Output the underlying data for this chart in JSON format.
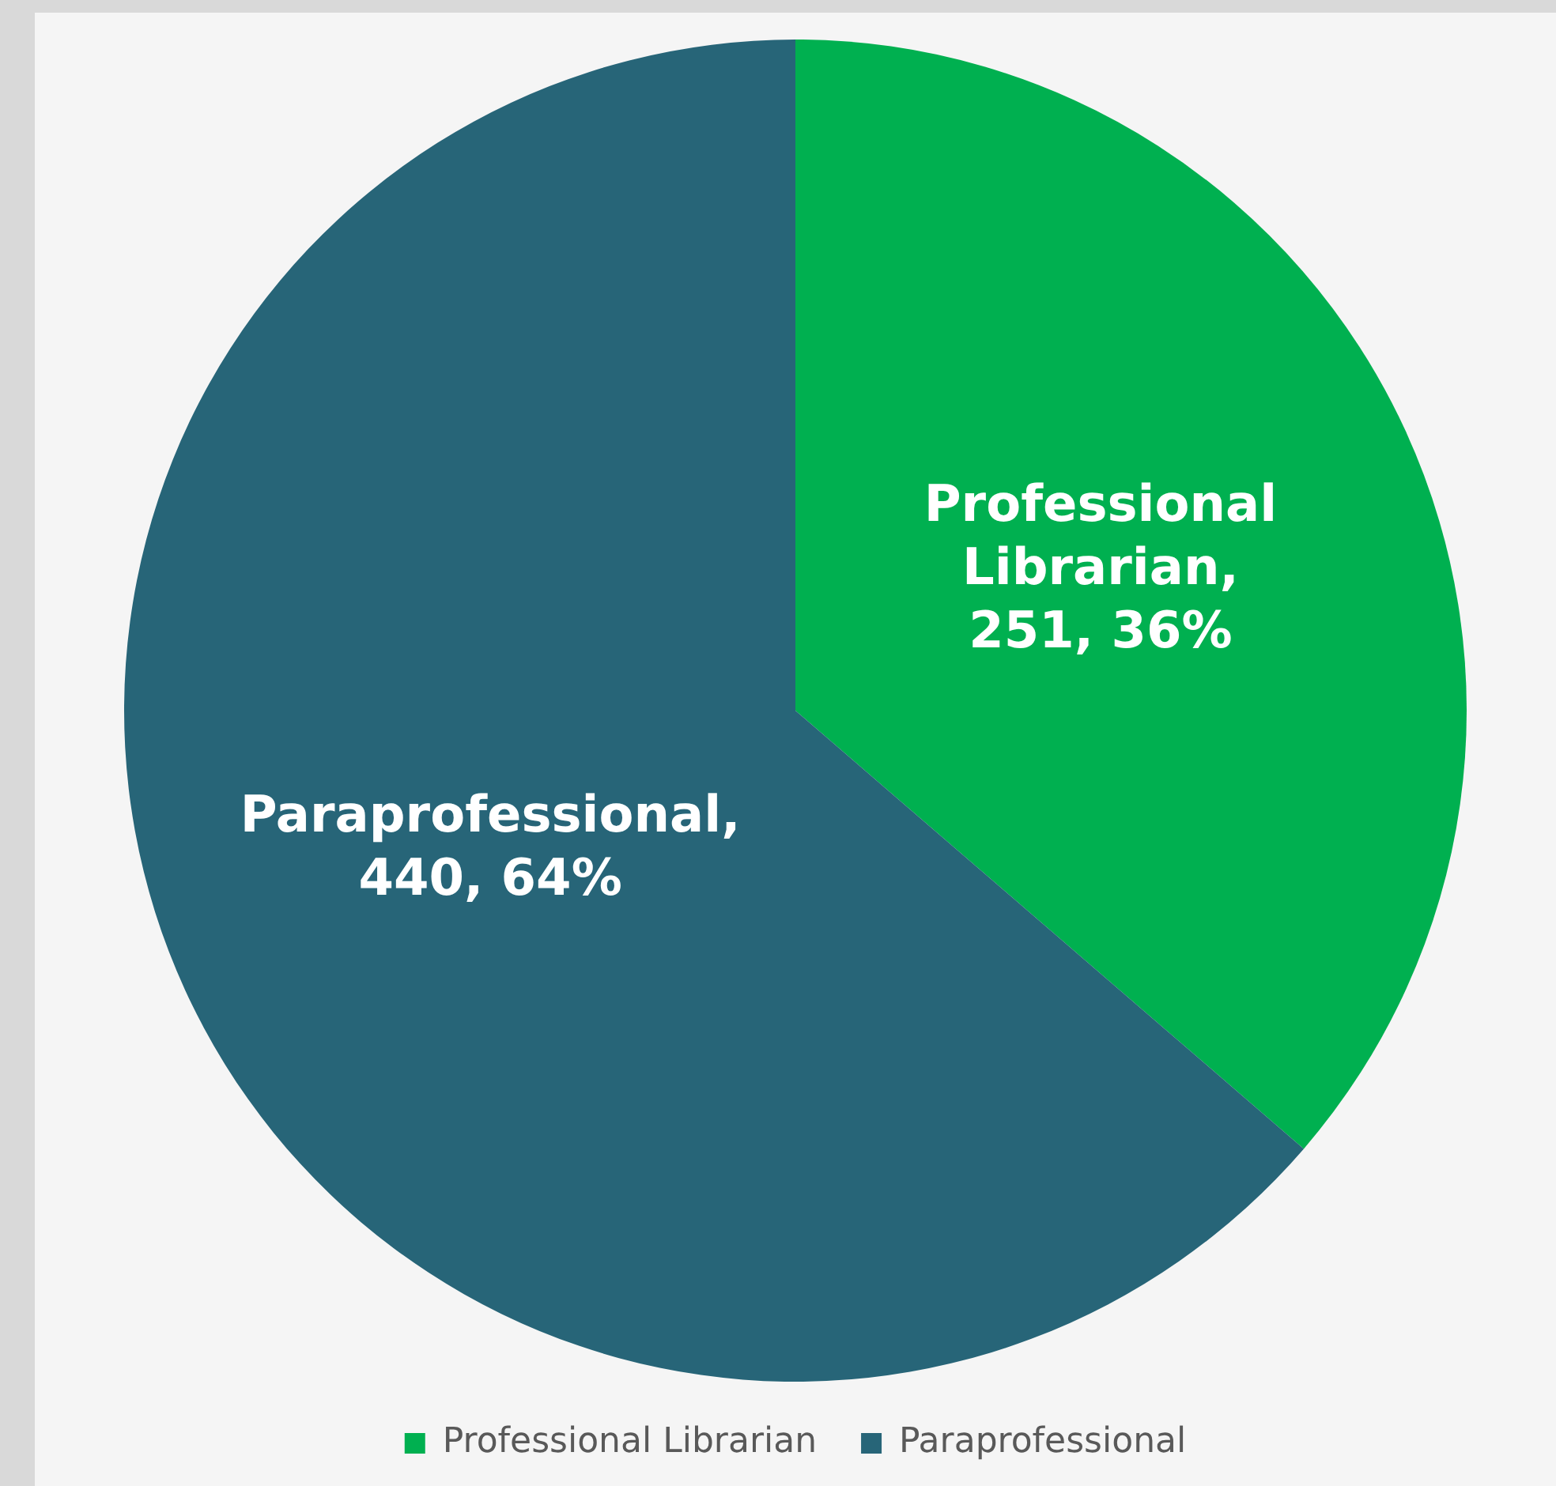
{
  "chart_data": {
    "type": "pie",
    "categories": [
      "Professional Librarian",
      "Paraprofessional"
    ],
    "values": [
      251,
      440
    ],
    "colors": [
      "#00b050",
      "#276578"
    ],
    "value_labels": [
      "Professional Librarian, 251, 36%",
      "Paraprofessional, 440, 64%"
    ],
    "legend": "bottom"
  }
}
